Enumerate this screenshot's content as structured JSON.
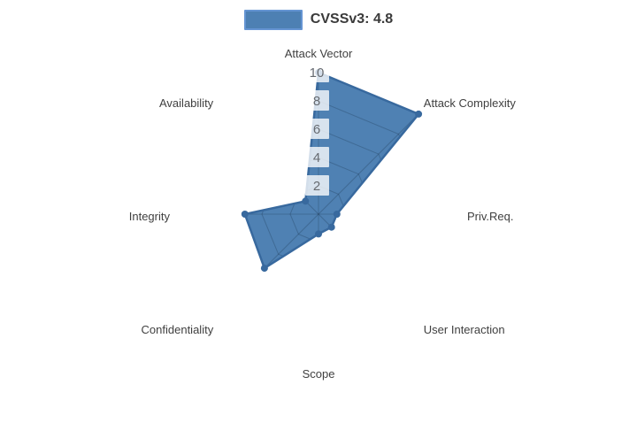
{
  "legend": {
    "label": "CVSSv3: 4.8"
  },
  "chart_data": {
    "type": "radar",
    "title": "",
    "categories": [
      "Attack Vector",
      "Attack Complexity",
      "Priv.Req.",
      "User Interaction",
      "Scope",
      "Confidentiality",
      "Integrity",
      "Availability"
    ],
    "series": [
      {
        "name": "CVSSv3: 4.8",
        "values": [
          10,
          10,
          1.3,
          1.3,
          1.4,
          5.4,
          5.2,
          1.3
        ]
      }
    ],
    "radial_ticks": [
      2,
      4,
      6,
      8,
      10
    ],
    "range": [
      0,
      10
    ],
    "start_axis": "top",
    "direction": "clockwise",
    "grid": "shown only under series fill",
    "legend_position": "top-center",
    "colors": {
      "series_fill": "#4f81b3",
      "series_line": "#38699e",
      "marker": "#38699e",
      "grid_line_inside": "rgba(16,38,60,0.25)",
      "tick_box": "rgba(255,255,255,0.78)",
      "tick_text": "#666a70",
      "axis_label_text": "#404040",
      "legend_text": "#3a3a3a",
      "legend_swatch_fill": "#4d80b3",
      "legend_swatch_border": "#6494d2",
      "background": "#ffffff"
    }
  }
}
